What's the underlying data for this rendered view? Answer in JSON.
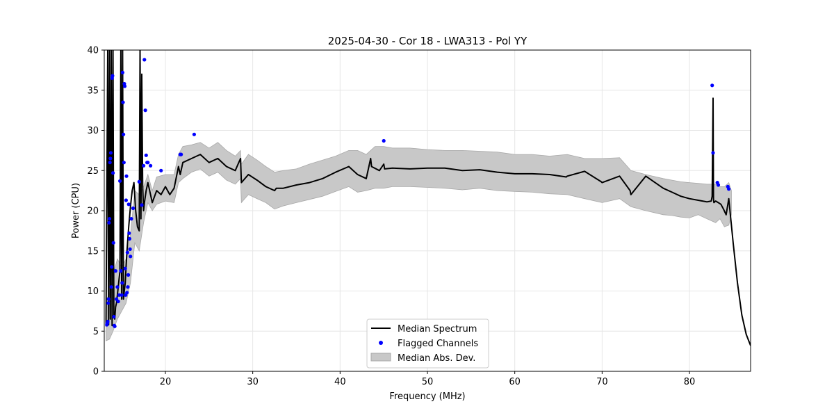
{
  "chart_data": {
    "type": "line",
    "title": "2025-04-30 - Cor 18 - LWA313 - Pol YY",
    "xlabel": "Frequency (MHz)",
    "ylabel": "Power (CPU)",
    "xlim": [
      13,
      87
    ],
    "ylim": [
      0,
      40
    ],
    "xticks": [
      20,
      30,
      40,
      50,
      60,
      70,
      80
    ],
    "yticks": [
      0,
      5,
      10,
      15,
      20,
      25,
      30,
      35,
      40
    ],
    "grid": true,
    "legend_position": "bottom-center",
    "colors": {
      "line": "#000000",
      "flagged": "#0000ff",
      "band_fill": "#c8c8c8",
      "band_edge": "#a8a8a8",
      "grid": "#e6e6e6"
    },
    "legend": [
      {
        "label": "Median Spectrum",
        "kind": "line"
      },
      {
        "label": "Flagged Channels",
        "kind": "marker"
      },
      {
        "label": "Median Abs. Dev.",
        "kind": "patch"
      }
    ],
    "median": {
      "x": [
        13.2,
        13.4,
        13.5,
        13.6,
        13.7,
        13.8,
        13.9,
        14.0,
        14.1,
        14.2,
        14.3,
        14.4,
        14.5,
        14.6,
        14.8,
        14.9,
        15.0,
        15.1,
        15.2,
        15.3,
        15.4,
        15.5,
        15.6,
        15.8,
        16.0,
        16.2,
        16.4,
        16.6,
        16.8,
        17.0,
        17.1,
        17.2,
        17.3,
        17.4,
        17.5,
        17.6,
        17.8,
        18.0,
        18.5,
        19.0,
        19.5,
        20.0,
        20.5,
        21.0,
        21.5,
        21.7,
        22.0,
        23.0,
        24.0,
        25.0,
        26.0,
        27.0,
        28.0,
        28.6,
        28.7,
        29.5,
        30.5,
        31.5,
        32.5,
        32.7,
        33.5,
        35.0,
        36.5,
        38.0,
        39.5,
        41.0,
        42.0,
        43.0,
        43.5,
        43.6,
        44.5,
        45.0,
        45.1,
        46.0,
        48.0,
        50.0,
        52.0,
        54.0,
        56.0,
        58.0,
        60.0,
        62.0,
        64.0,
        65.9,
        66.0,
        68.0,
        69.9,
        70.0,
        72.0,
        73.2,
        73.3,
        75.0,
        77.0,
        78.0,
        79.0,
        80.0,
        81.0,
        82.0,
        82.5,
        82.6,
        82.7,
        82.75,
        82.8,
        83.0,
        83.3,
        83.6,
        83.9,
        84.2,
        84.5,
        85.0,
        85.5,
        86.0,
        86.5,
        87.0
      ],
      "y": [
        5.6,
        40,
        5.8,
        40,
        6.5,
        40,
        5.7,
        40,
        7.0,
        6.5,
        8.0,
        8.5,
        9.5,
        10.5,
        12.5,
        40,
        9.0,
        40,
        9.0,
        10.0,
        11.0,
        13.0,
        15.0,
        18.0,
        20.5,
        22.5,
        23.5,
        20.0,
        18.0,
        17.5,
        40,
        19.0,
        37.0,
        23.0,
        20.0,
        21.0,
        22.5,
        23.5,
        21.0,
        22.5,
        22.0,
        23.0,
        22.0,
        22.8,
        25.5,
        24.5,
        26.0,
        26.5,
        27.0,
        26.0,
        26.5,
        25.5,
        25.0,
        26.5,
        23.5,
        24.5,
        23.8,
        23.0,
        22.5,
        22.8,
        22.8,
        23.2,
        23.5,
        24.0,
        24.8,
        25.5,
        24.5,
        24.0,
        26.5,
        25.5,
        25.0,
        25.8,
        25.2,
        25.3,
        25.2,
        25.3,
        25.3,
        25.0,
        25.1,
        24.8,
        24.6,
        24.6,
        24.5,
        24.2,
        24.3,
        24.9,
        23.6,
        23.5,
        24.3,
        22.5,
        22.0,
        24.3,
        22.8,
        22.3,
        21.8,
        21.5,
        21.3,
        21.1,
        21.2,
        21.8,
        34.0,
        21.5,
        21.0,
        21.2,
        21.0,
        20.8,
        20.2,
        19.5,
        21.5,
        16.0,
        11.0,
        7.0,
        4.6,
        3.2
      ]
    },
    "mad_band": {
      "x": [
        13.2,
        13.6,
        14.0,
        14.5,
        15.0,
        15.5,
        16.0,
        16.5,
        17.0,
        17.5,
        18.0,
        18.5,
        19.0,
        20.0,
        21.0,
        21.5,
        22.0,
        23.0,
        24.0,
        25.0,
        26.0,
        27.0,
        28.0,
        28.6,
        28.7,
        29.5,
        30.5,
        31.5,
        32.5,
        33.5,
        35.0,
        36.5,
        38.0,
        39.5,
        41.0,
        42.0,
        43.0,
        44.0,
        45.0,
        46.0,
        48.0,
        50.0,
        52.0,
        54.0,
        56.0,
        58.0,
        60.0,
        62.0,
        64.0,
        66.0,
        68.0,
        70.0,
        72.0,
        73.3,
        75.0,
        77.0,
        78.0,
        79.0,
        80.0,
        81.0,
        82.0,
        83.0,
        83.5,
        84.0,
        84.5,
        84.8
      ],
      "lower": [
        3.8,
        4.0,
        5.0,
        6.5,
        7.5,
        8.5,
        11.0,
        16.0,
        15.0,
        18.5,
        21.0,
        20.0,
        20.8,
        21.2,
        21.0,
        23.5,
        24.0,
        24.8,
        25.2,
        24.3,
        24.8,
        23.8,
        23.3,
        24.0,
        21.0,
        22.0,
        21.5,
        21.0,
        20.2,
        20.6,
        21.0,
        21.4,
        21.8,
        22.4,
        23.0,
        22.3,
        22.5,
        22.8,
        22.8,
        23.0,
        23.0,
        22.9,
        22.8,
        22.6,
        22.8,
        22.5,
        22.4,
        22.3,
        22.1,
        22.0,
        21.5,
        21.0,
        21.5,
        20.5,
        20.0,
        19.5,
        19.4,
        19.2,
        19.1,
        19.5,
        19.0,
        18.5,
        19.0,
        18.0,
        18.2,
        19.5
      ],
      "upper": [
        9.0,
        9.5,
        12.0,
        14.0,
        13.0,
        14.0,
        17.0,
        22.5,
        22.0,
        23.0,
        24.5,
        22.5,
        24.2,
        24.5,
        24.5,
        27.0,
        28.0,
        28.2,
        28.5,
        27.8,
        28.5,
        27.5,
        26.8,
        27.5,
        25.8,
        27.0,
        26.3,
        25.5,
        24.8,
        25.0,
        25.2,
        25.8,
        26.3,
        26.8,
        27.5,
        27.5,
        27.0,
        28.0,
        28.0,
        27.8,
        27.8,
        27.6,
        27.5,
        27.5,
        27.4,
        27.3,
        27.0,
        27.0,
        26.8,
        27.0,
        26.5,
        26.5,
        26.6,
        25.0,
        24.5,
        24.0,
        23.8,
        23.6,
        23.5,
        23.4,
        23.3,
        23.3,
        23.0,
        23.0,
        23.5,
        22.5
      ]
    },
    "flagged": {
      "x": [
        13.3,
        13.35,
        13.4,
        13.45,
        13.5,
        13.55,
        13.6,
        13.65,
        13.7,
        13.75,
        13.8,
        13.85,
        13.9,
        13.95,
        14.0,
        14.05,
        14.1,
        14.15,
        14.2,
        14.3,
        14.4,
        14.5,
        14.6,
        14.7,
        14.8,
        14.9,
        15.0,
        15.05,
        15.1,
        15.15,
        15.2,
        15.25,
        15.3,
        15.35,
        15.4,
        15.45,
        15.5,
        15.55,
        15.6,
        15.65,
        15.7,
        15.75,
        15.8,
        15.85,
        15.9,
        15.95,
        16.0,
        16.1,
        16.3,
        17.0,
        17.3,
        17.5,
        17.6,
        17.7,
        17.8,
        17.9,
        18.0,
        18.3,
        19.5,
        21.7,
        21.8,
        23.3,
        45.0,
        82.6,
        82.7,
        83.2,
        83.3,
        84.4,
        84.5
      ],
      "y": [
        5.8,
        6.0,
        6.2,
        8.5,
        9.0,
        18.5,
        19.0,
        26.0,
        26.5,
        27.2,
        10.5,
        13.0,
        36.5,
        36.8,
        24.7,
        16.0,
        6.8,
        5.7,
        5.6,
        12.5,
        9.0,
        10.5,
        8.7,
        9.5,
        23.7,
        12.5,
        9.5,
        11.0,
        37.2,
        33.5,
        29.5,
        26.0,
        35.8,
        35.5,
        12.8,
        9.5,
        21.3,
        24.3,
        9.8,
        14.8,
        10.5,
        12.0,
        20.8,
        17.2,
        16.5,
        15.2,
        14.3,
        19.0,
        20.3,
        23.6,
        20.7,
        25.6,
        38.8,
        32.5,
        26.9,
        26.0,
        26.0,
        25.6,
        25.0,
        27.0,
        27.0,
        29.5,
        28.7,
        35.6,
        27.2,
        23.5,
        23.2,
        23.0,
        22.7
      ]
    }
  }
}
